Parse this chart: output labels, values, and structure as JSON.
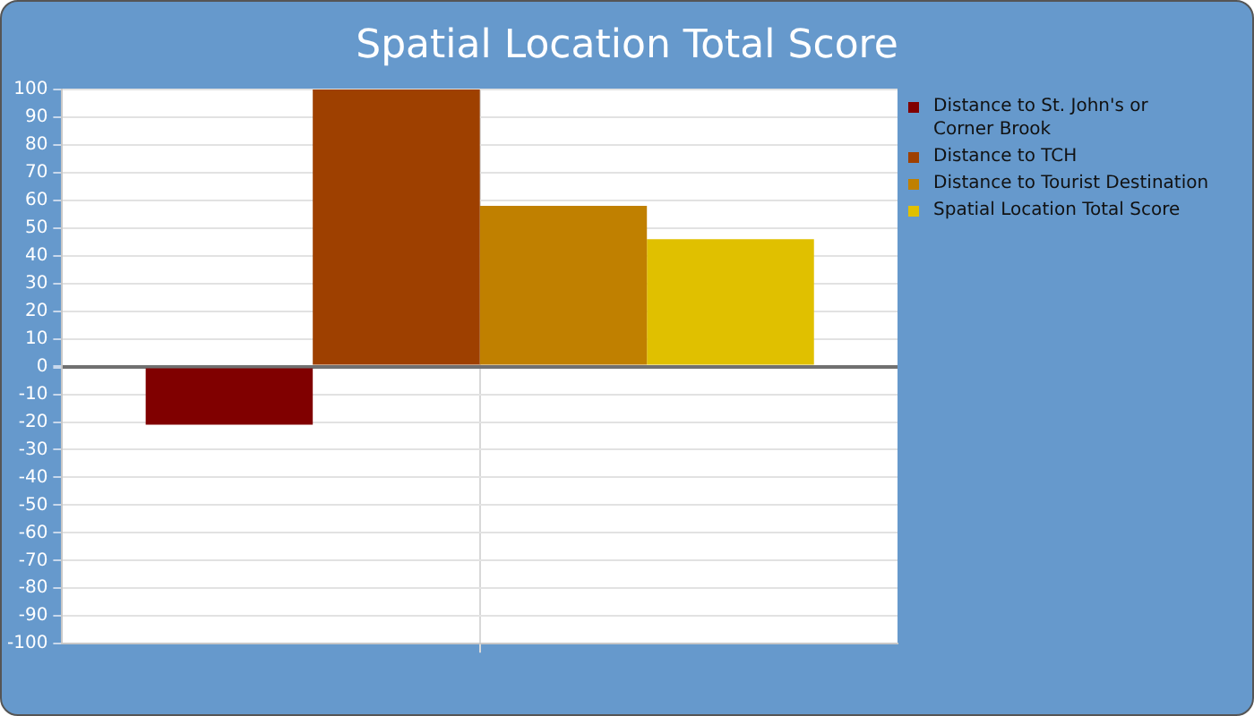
{
  "chart_data": {
    "type": "bar",
    "title": "Spatial Location Total Score",
    "categories": [
      null
    ],
    "series": [
      {
        "name": "Distance to St. John's or Corner Brook",
        "color": "#800000",
        "values": [
          -21
        ]
      },
      {
        "name": "Distance to TCH",
        "color": "#9e4000",
        "values": [
          100
        ]
      },
      {
        "name": "Distance to Tourist Destination",
        "color": "#c08000",
        "values": [
          58
        ]
      },
      {
        "name": "Spatial Location Total Score",
        "color": "#e0c000",
        "values": [
          46
        ]
      }
    ],
    "ylim": [
      -100,
      100
    ],
    "yticks": [
      -100,
      -90,
      -80,
      -70,
      -60,
      -50,
      -40,
      -30,
      -20,
      -10,
      0,
      10,
      20,
      30,
      40,
      50,
      60,
      70,
      80,
      90,
      100
    ],
    "grid": true,
    "legend": "right"
  }
}
